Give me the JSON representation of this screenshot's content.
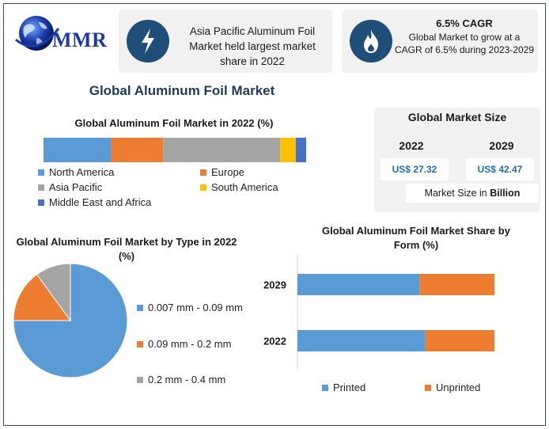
{
  "logo": {
    "text": "MMR"
  },
  "cards": {
    "region_card": {
      "icon": "lightning-icon",
      "text": "Asia Pacific Aluminum Foil Market held largest market share in 2022"
    },
    "cagr_card": {
      "icon": "flame-icon",
      "title": "6.5% CAGR",
      "text": "Global Market to grow at a CAGR of 6.5% during 2023-2029"
    }
  },
  "main_title": "Global Aluminum Foil Market",
  "market_size": {
    "title": "Global Market Size",
    "years": [
      "2022",
      "2029"
    ],
    "values": [
      "US$ 27.32",
      "US$ 42.47"
    ],
    "unit_prefix": "Market Size in ",
    "unit": "Billion",
    "value_color": "#1f6fb0"
  },
  "chart_data": [
    {
      "type": "bar",
      "stacked": true,
      "orientation": "horizontal",
      "title": "Global Aluminum Foil Market in 2022 (%)",
      "series": [
        {
          "name": "North America",
          "value": 26,
          "color": "#5b9bd5"
        },
        {
          "name": "Europe",
          "value": 20,
          "color": "#ed7d31"
        },
        {
          "name": "Asia Pacific",
          "value": 45,
          "color": "#a5a5a5"
        },
        {
          "name": "South America",
          "value": 6,
          "color": "#ffc000"
        },
        {
          "name": "Middle East and Africa",
          "value": 4,
          "color": "#4472c4"
        }
      ],
      "legend_position": "bottom"
    },
    {
      "type": "pie",
      "title": "Global Aluminum Foil Market by Type in 2022 (%)",
      "slices": [
        {
          "name": "0.007 mm - 0.09 mm",
          "value": 75,
          "color": "#5b9bd5"
        },
        {
          "name": "0.09 mm - 0.2 mm",
          "value": 15,
          "color": "#ed7d31"
        },
        {
          "name": "0.2 mm - 0.4 mm",
          "value": 10,
          "color": "#a5a5a5"
        }
      ],
      "legend_position": "right"
    },
    {
      "type": "bar",
      "stacked": true,
      "orientation": "horizontal",
      "title": "Global Aluminum Foil Market Share by Form (%)",
      "categories": [
        "2029",
        "2022"
      ],
      "series": [
        {
          "name": "Printed",
          "values": [
            62,
            65
          ],
          "color": "#5b9bd5"
        },
        {
          "name": "Unprinted",
          "values": [
            38,
            35
          ],
          "color": "#ed7d31"
        }
      ],
      "xlim": [
        0,
        100
      ],
      "legend_position": "bottom"
    }
  ]
}
